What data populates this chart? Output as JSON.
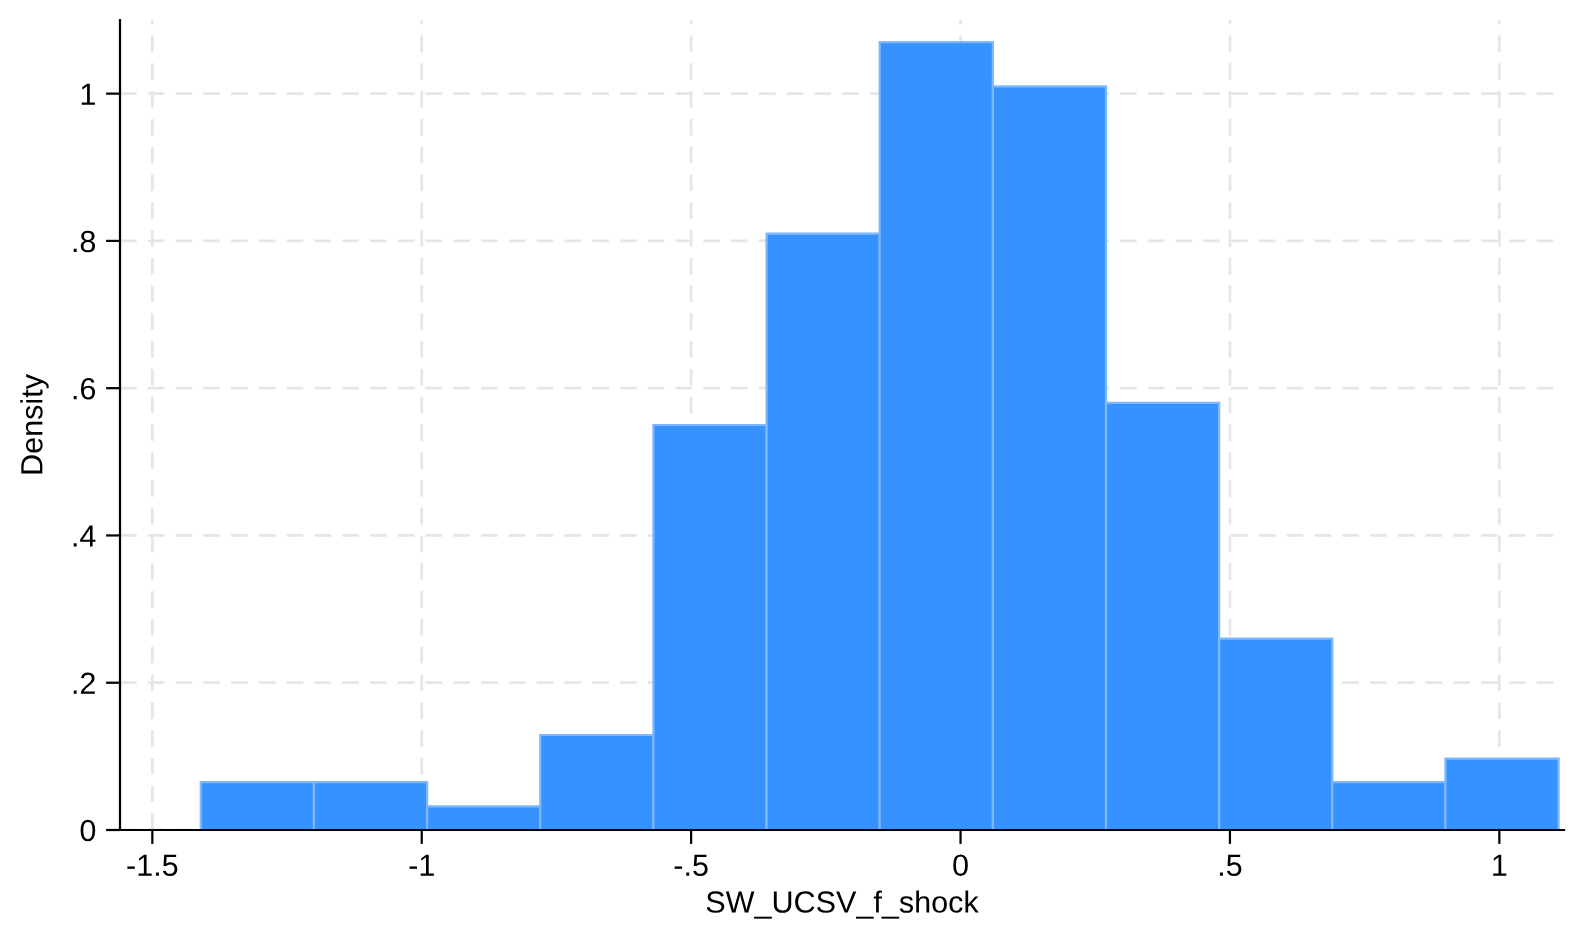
{
  "chart_data": {
    "type": "histogram",
    "xlabel": "SW_UCSV_f_shock",
    "ylabel": "Density",
    "bins": [
      -1.41,
      -1.2,
      -0.99,
      -0.78,
      -0.57,
      -0.36,
      -0.15,
      0.06,
      0.27,
      0.48,
      0.69,
      0.9,
      1.11
    ],
    "values": [
      0.065,
      0.065,
      0.032,
      0.129,
      0.55,
      0.81,
      1.07,
      1.01,
      0.58,
      0.26,
      0.065,
      0.097
    ],
    "color": "#3592ff",
    "xlim": [
      -1.56,
      1.12
    ],
    "ylim": [
      0,
      1.1
    ],
    "xticks": [
      {
        "value": -1.5,
        "label": "-1.5"
      },
      {
        "value": -1,
        "label": "-1"
      },
      {
        "value": -0.5,
        "label": "-.5"
      },
      {
        "value": 0,
        "label": "0"
      },
      {
        "value": 0.5,
        "label": ".5"
      },
      {
        "value": 1,
        "label": "1"
      }
    ],
    "yticks": [
      {
        "value": 0,
        "label": "0"
      },
      {
        "value": 0.2,
        "label": ".2"
      },
      {
        "value": 0.4,
        "label": ".4"
      },
      {
        "value": 0.6,
        "label": ".6"
      },
      {
        "value": 0.8,
        "label": ".8"
      },
      {
        "value": 1,
        "label": "1"
      }
    ],
    "grid": true
  }
}
